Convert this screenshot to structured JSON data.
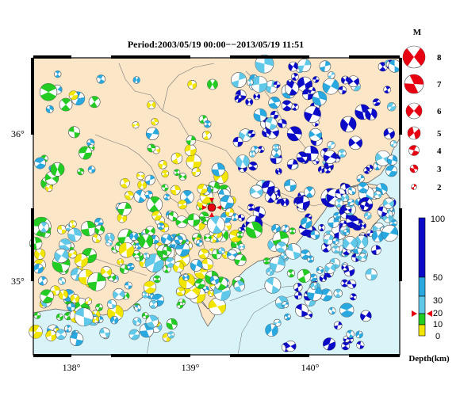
{
  "title": "Period:2003/05/19 00:00−−2013/05/19 11:51",
  "axes": {
    "lon_ticks": [
      "138°",
      "139°",
      "140°"
    ],
    "lat_ticks": [
      "36°",
      "35°"
    ]
  },
  "magnitude_legend": {
    "header": "M",
    "labels": [
      "8",
      "7",
      "6",
      "5",
      "4",
      "3",
      "2"
    ]
  },
  "depth_colorbar": {
    "title": "Depth(km)",
    "labels": [
      "100",
      "50",
      "30",
      "20",
      "10",
      "0"
    ],
    "colors": {
      "shallow": "#f2e600",
      "mid_shallow": "#22cc22",
      "mid": "#2aa8e0",
      "deep_mid": "#60c8e8",
      "deep": "#0a0ac8"
    }
  },
  "colors": {
    "land": "#fbe6c8",
    "sea": "#d8f4f8",
    "frame": "#000000",
    "epicenter": "#e60012"
  },
  "selected_event_marker": "red-triangle-markers"
}
